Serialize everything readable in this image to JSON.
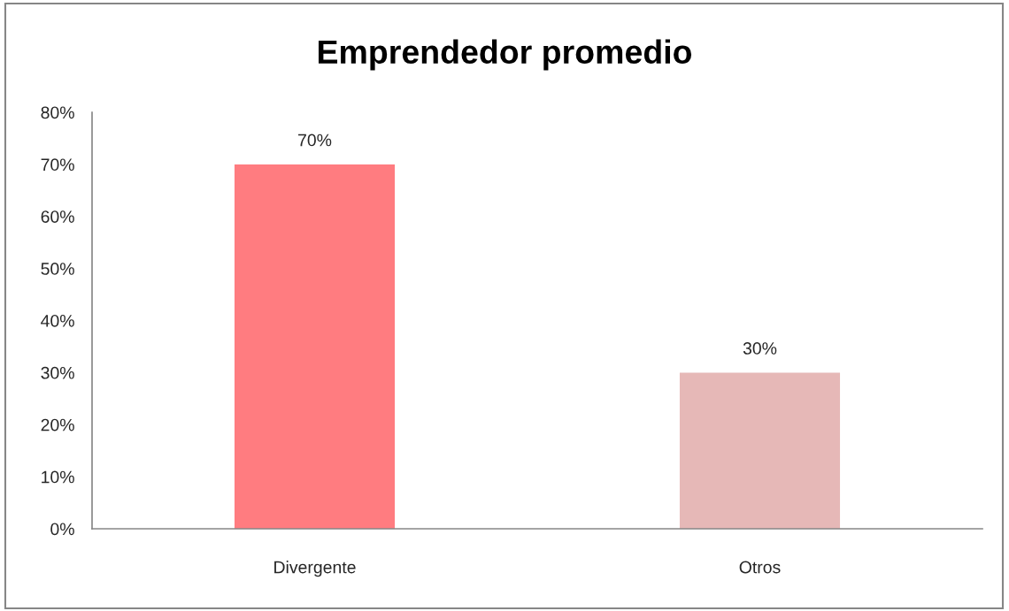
{
  "chart_data": {
    "type": "bar",
    "title": "Emprendedor promedio",
    "categories": [
      "Divergente",
      "Otros"
    ],
    "values": [
      70,
      30
    ],
    "colors": [
      "#ff7c80",
      "#e6b8b7"
    ],
    "value_labels": [
      "70%",
      "30%"
    ],
    "ylim": [
      0,
      80
    ],
    "yticks": [
      {
        "value": 0,
        "label": "0%"
      },
      {
        "value": 10,
        "label": "10%"
      },
      {
        "value": 20,
        "label": "20%"
      },
      {
        "value": 30,
        "label": "30%"
      },
      {
        "value": 40,
        "label": "40%"
      },
      {
        "value": 50,
        "label": "50%"
      },
      {
        "value": 60,
        "label": "60%"
      },
      {
        "value": 70,
        "label": "70%"
      },
      {
        "value": 80,
        "label": "80%"
      }
    ],
    "grid": false,
    "legend": false
  }
}
